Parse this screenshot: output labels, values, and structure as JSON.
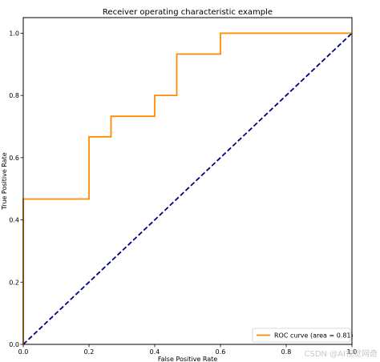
{
  "chart_data": {
    "type": "line",
    "title": "Receiver operating characteristic example",
    "xlabel": "False Positive Rate",
    "ylabel": "True Positive Rate",
    "xlim": [
      0.0,
      1.0
    ],
    "ylim": [
      0.0,
      1.05
    ],
    "xticks": [
      "0.0",
      "0.2",
      "0.4",
      "0.6",
      "0.8",
      "1.0"
    ],
    "yticks": [
      "0.0",
      "0.2",
      "0.4",
      "0.6",
      "0.8",
      "1.0"
    ],
    "grid": false,
    "legend_position": "lower-right",
    "series": [
      {
        "name": "ROC curve (area = 0.81)",
        "color": "#ff8c00",
        "style": "solid",
        "x": [
          0.0,
          0.0,
          0.2,
          0.2,
          0.267,
          0.267,
          0.4,
          0.4,
          0.467,
          0.467,
          0.6,
          0.6,
          1.0
        ],
        "y": [
          0.0,
          0.467,
          0.467,
          0.667,
          0.667,
          0.733,
          0.733,
          0.8,
          0.8,
          0.933,
          0.933,
          1.0,
          1.0
        ]
      },
      {
        "name": "",
        "color": "#000080",
        "style": "dashed",
        "x": [
          0.0,
          1.0
        ],
        "y": [
          0.0,
          1.0
        ]
      }
    ]
  },
  "watermark": "CSDN @AI视觉网奇"
}
